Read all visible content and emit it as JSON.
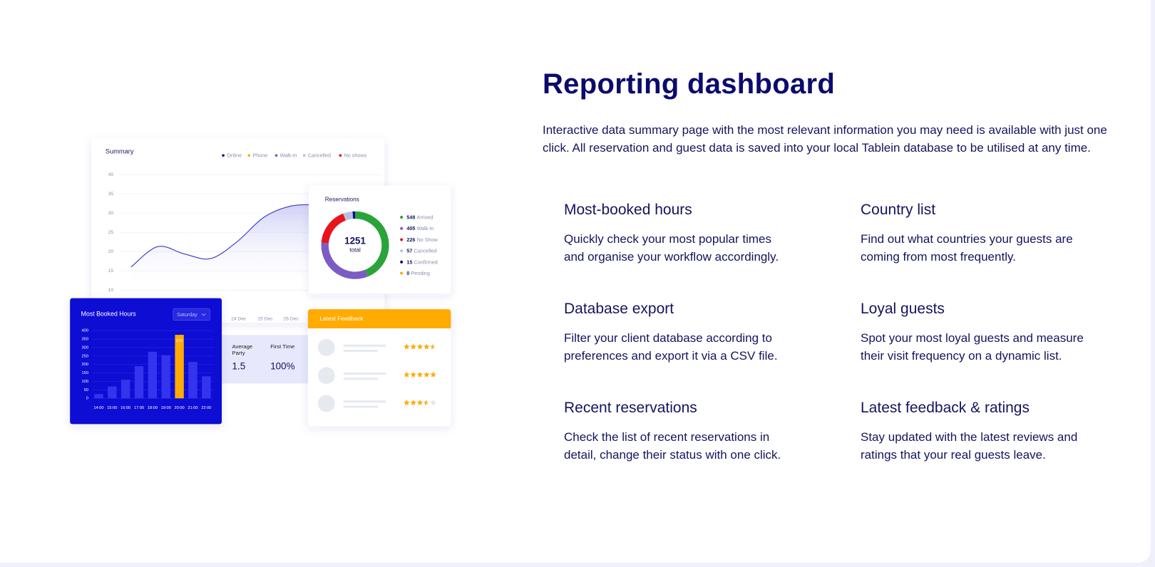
{
  "header": {
    "title": "Reporting dashboard",
    "description": "Interactive data summary page with the most relevant information you may need is available with just one click. All reservation and guest data is saved into your local Tablein database to be utilised at any time."
  },
  "features": [
    {
      "title": "Most-booked hours",
      "description": "Quickly check your most popular times and organise your workflow accordingly."
    },
    {
      "title": "Country list",
      "description": "Find out what countries your guests are coming from most frequently."
    },
    {
      "title": "Database export",
      "description": "Filter your client database according to preferences and export it via a CSV file."
    },
    {
      "title": "Loyal guests",
      "description": "Spot your most loyal guests and measure their visit frequency on a dynamic list."
    },
    {
      "title": "Recent reservations",
      "description": "Check the list of recent reservations in detail, change their status with one click."
    },
    {
      "title": "Latest feedback & ratings",
      "description": "Stay updated with the latest reviews and ratings that your real guests leave."
    }
  ],
  "summary": {
    "type": "line",
    "title": "Summary",
    "legend": [
      {
        "name": "Online",
        "color": "#1a1a8c"
      },
      {
        "name": "Phone",
        "color": "#ffab00"
      },
      {
        "name": "Walk-in",
        "color": "#7b5cc4"
      },
      {
        "name": "Cancelled",
        "color": "#b8c0e0"
      },
      {
        "name": "No shows",
        "color": "#e8141c"
      }
    ],
    "ylim": [
      10,
      40
    ],
    "yticks": [
      40,
      35,
      30,
      25,
      20,
      15,
      10
    ],
    "dates": [
      "24 Dec",
      "25 Dec",
      "26 Dec"
    ],
    "line": {
      "color": "#3b3bc8",
      "values": [
        16,
        21.3,
        19.4,
        18.2,
        22.6,
        28.9,
        31.8,
        32.2
      ]
    }
  },
  "reservations": {
    "type": "pie",
    "title": "Reservations",
    "total": 1251,
    "total_label": "total",
    "items": [
      {
        "value": 548,
        "label": "Arrived",
        "color": "#2aa43a"
      },
      {
        "value": 405,
        "label": "Walk-in",
        "color": "#7b5cc4"
      },
      {
        "value": 226,
        "label": "No Show",
        "color": "#e8141c"
      },
      {
        "value": 57,
        "label": "Cancelled",
        "color": "#b8c0e0"
      },
      {
        "value": 15,
        "label": "Confirmed",
        "color": "#0b0b8c"
      },
      {
        "value": 0,
        "label": "Pending",
        "color": "#ffab00"
      }
    ]
  },
  "booked_hours": {
    "type": "bar",
    "title": "Most Booked Hours",
    "filter": "Saturday",
    "categories": [
      "14:00",
      "15:00",
      "16:00",
      "17:00",
      "18:00",
      "19:00",
      "20:00",
      "21:00",
      "22:00"
    ],
    "values": [
      25,
      70,
      110,
      190,
      275,
      255,
      375,
      215,
      130
    ],
    "value_labels": [
      null,
      null,
      null,
      null,
      null,
      null,
      "375",
      null,
      null
    ],
    "colors": [
      "#3434ee",
      "#3434ee",
      "#3434ee",
      "#3434ee",
      "#3434ee",
      "#3434ee",
      "#ffab00",
      "#3434ee",
      "#3434ee"
    ],
    "ylim": [
      0,
      400
    ],
    "yticks": [
      400,
      350,
      300,
      250,
      200,
      150,
      100,
      50,
      0
    ]
  },
  "stats": [
    {
      "label": "Average Party",
      "value": 1.5
    },
    {
      "label": "First Time",
      "value": "100%"
    }
  ],
  "feedback": {
    "title": "Latest Feedback",
    "ratings": [
      4.5,
      5,
      3.5
    ],
    "color": "#ffab00"
  }
}
